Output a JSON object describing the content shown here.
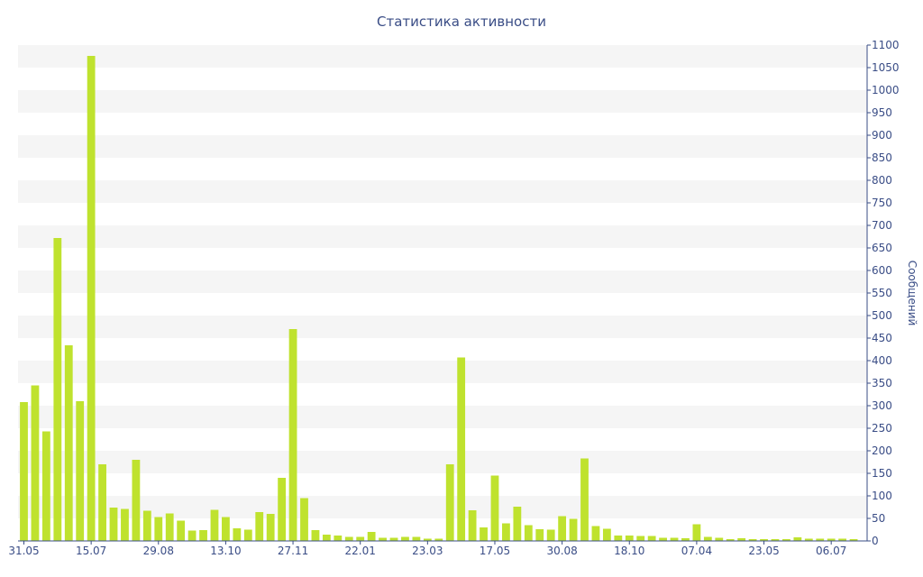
{
  "chart_data": {
    "type": "bar",
    "title": "Статистика активности",
    "ylabel": "Сообщений",
    "xlabel": "",
    "ylim": [
      0,
      1100
    ],
    "ytick_step": 50,
    "grid": "horizontal alternating bands",
    "bar_color": "#bfe22e",
    "band_color": "#f5f5f5",
    "text_color": "#3a4d86",
    "x_tick_labels": [
      {
        "label": "31.05",
        "index": 0
      },
      {
        "label": "15.07",
        "index": 6
      },
      {
        "label": "29.08",
        "index": 12
      },
      {
        "label": "13.10",
        "index": 18
      },
      {
        "label": "27.11",
        "index": 24
      },
      {
        "label": "22.01",
        "index": 30
      },
      {
        "label": "23.03",
        "index": 36
      },
      {
        "label": "17.05",
        "index": 42
      },
      {
        "label": "30.08",
        "index": 48
      },
      {
        "label": "18.10",
        "index": 54
      },
      {
        "label": "07.04",
        "index": 60
      },
      {
        "label": "23.05",
        "index": 66
      },
      {
        "label": "06.07",
        "index": 72
      }
    ],
    "values": [
      308,
      345,
      243,
      672,
      434,
      310,
      1076,
      170,
      74,
      71,
      180,
      67,
      53,
      61,
      45,
      23,
      24,
      69,
      53,
      28,
      25,
      64,
      60,
      140,
      470,
      95,
      24,
      14,
      12,
      9,
      9,
      20,
      7,
      7,
      9,
      9,
      5,
      5,
      170,
      407,
      68,
      30,
      145,
      39,
      76,
      35,
      26,
      25,
      55,
      49,
      183,
      33,
      27,
      12,
      12,
      11,
      11,
      7,
      7,
      6,
      37,
      9,
      7,
      4,
      6,
      4,
      4,
      4,
      4,
      8,
      5,
      5,
      5,
      5,
      4
    ]
  }
}
